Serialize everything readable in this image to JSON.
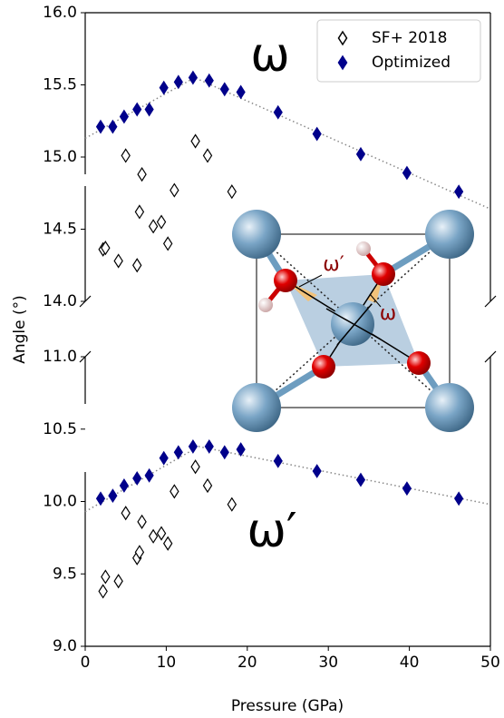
{
  "chart_data": [
    {
      "type": "scatter",
      "annotation": "ω",
      "legend": "upper right",
      "xlim": [
        0,
        50
      ],
      "ylim": [
        14,
        16
      ],
      "yticks": [
        {
          "value": 14,
          "label": "14.0"
        },
        14.5,
        {
          "value": 15,
          "label": "15.0"
        },
        15.5,
        {
          "value": 16,
          "label": "16.0"
        }
      ],
      "series": [
        {
          "name": "SF+ 2018",
          "color": "#000000",
          "marker": "open-diamond",
          "x": [
            2.2,
            2.5,
            4.1,
            5.0,
            6.4,
            6.7,
            7.0,
            8.4,
            9.4,
            10.2,
            11.0,
            13.6,
            15.1,
            18.1
          ],
          "values": [
            14.36,
            14.37,
            14.28,
            15.01,
            14.25,
            14.62,
            14.88,
            14.52,
            14.55,
            14.4,
            14.77,
            15.11,
            15.01,
            14.76
          ]
        },
        {
          "name": "Optimized",
          "color": "#00008b",
          "marker": "diamond",
          "x": [
            1.9,
            3.4,
            4.8,
            6.4,
            7.9,
            9.7,
            11.5,
            13.3,
            15.3,
            17.2,
            19.2,
            23.8,
            28.6,
            34.0,
            39.7,
            46.1
          ],
          "values": [
            15.21,
            15.21,
            15.28,
            15.33,
            15.33,
            15.48,
            15.52,
            15.55,
            15.53,
            15.47,
            15.45,
            15.31,
            15.16,
            15.02,
            14.89,
            14.76
          ]
        },
        {
          "color": "#888888",
          "style": "dotted",
          "x": [
            0,
            13.5,
            50
          ],
          "values": [
            15.13,
            15.55,
            14.64
          ]
        }
      ]
    },
    {
      "type": "scatter",
      "annotation": "ω′",
      "xlabel": "Pressure (GPa)",
      "ylabel": "Angle (°)",
      "xlim": [
        0,
        50
      ],
      "xticks": [
        0,
        10,
        20,
        30,
        40,
        50
      ],
      "ylim": [
        9,
        11
      ],
      "yticks": [
        {
          "value": 9,
          "label": "9.0"
        },
        9.5,
        {
          "value": 10,
          "label": "10.0"
        },
        10.5,
        {
          "value": 11,
          "label": "11.0"
        }
      ],
      "series": [
        {
          "color": "#000000",
          "marker": "open-diamond",
          "x": [
            2.2,
            2.5,
            4.1,
            5.0,
            6.4,
            6.7,
            7.0,
            8.4,
            9.4,
            10.2,
            11.0,
            13.6,
            15.1,
            18.1
          ],
          "values": [
            9.38,
            9.48,
            9.45,
            9.92,
            9.61,
            9.65,
            9.86,
            9.76,
            9.78,
            9.71,
            10.07,
            10.24,
            10.11,
            9.98
          ]
        },
        {
          "color": "#00008b",
          "marker": "diamond",
          "x": [
            1.9,
            3.4,
            4.8,
            6.4,
            7.9,
            9.7,
            11.5,
            13.3,
            15.3,
            17.2,
            19.2,
            23.8,
            28.6,
            34.0,
            39.7,
            46.1
          ],
          "values": [
            10.02,
            10.04,
            10.11,
            10.16,
            10.18,
            10.3,
            10.34,
            10.38,
            10.38,
            10.34,
            10.36,
            10.28,
            10.21,
            10.15,
            10.09,
            10.02
          ]
        },
        {
          "color": "#888888",
          "style": "dotted",
          "x": [
            0,
            14,
            50
          ],
          "values": [
            9.93,
            10.38,
            9.98
          ]
        }
      ]
    }
  ],
  "inset": {
    "labels": [
      "ω′",
      "ω"
    ]
  }
}
